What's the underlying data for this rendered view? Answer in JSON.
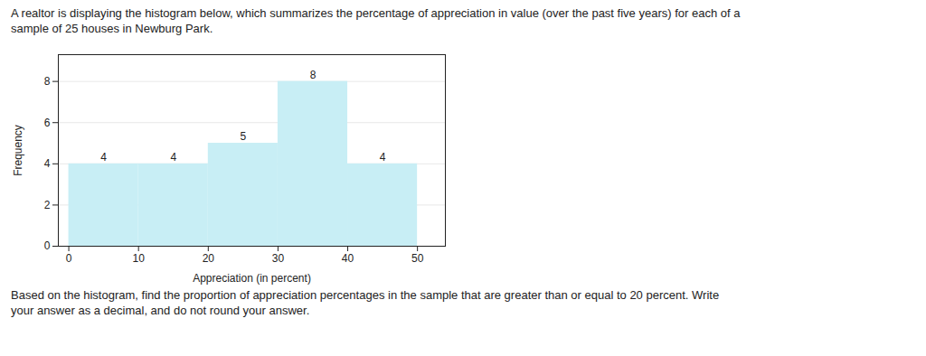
{
  "chart_data": {
    "type": "histogram",
    "title": "A realtor is displaying the histogram below, which summarizes the percentage of appreciation in value (over the past five years) for each of a",
    "subtitle": "sample of 25 houses in Newburg Park.",
    "annotations": [
      "Based on the histogram, find the proportion of appreciation percentages in the sample that are greater than or equal to 20 percent. Write",
      "your answer as a decimal, and do not round your answer."
    ],
    "bins": [
      0,
      10,
      20,
      30,
      40,
      50
    ],
    "values": [
      4,
      4,
      5,
      8,
      4
    ],
    "color": "#c8eef5",
    "xlabel": "Appreciation (in percent)",
    "ylabel": "Frequency",
    "xlim": [
      -1.5,
      54
    ],
    "xticks": [
      0,
      10,
      20,
      30,
      40,
      50
    ],
    "ylim": [
      0,
      9.3
    ],
    "yticks": [
      0,
      2,
      4,
      6,
      8
    ],
    "grid": true,
    "data_labels": true
  }
}
